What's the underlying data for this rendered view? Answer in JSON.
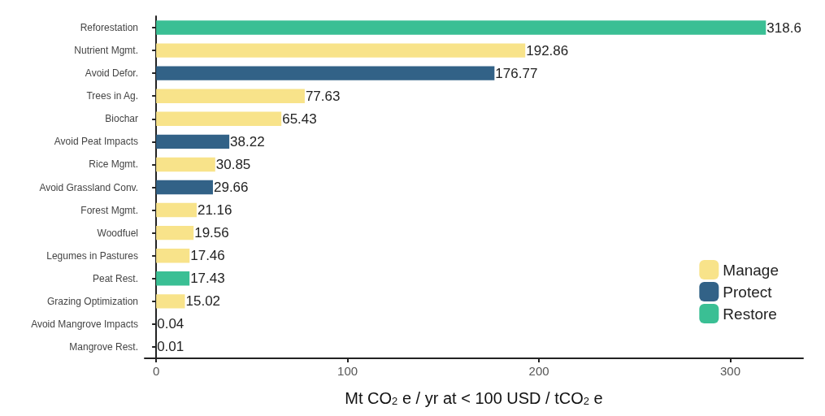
{
  "chart_data": {
    "type": "bar",
    "orientation": "horizontal",
    "stacked": true,
    "xlabel": "Mt CO$_{2}$ e / yr at < 100 USD / tCO$_{2}$ e",
    "categories": [
      "Reforestation",
      "Nutrient Mgmt.",
      "Avoid Defor.",
      "Trees in Ag.",
      "Biochar",
      "Avoid Peat Impacts",
      "Rice Mgmt.",
      "Avoid Grassland Conv.",
      "Forest Mgmt.",
      "Woodfuel",
      "Legumes in Pastures",
      "Peat Rest.",
      "Grazing Optimization",
      "Avoid Mangrove Impacts",
      "Mangrove Rest."
    ],
    "series": [
      {
        "name": "Manage",
        "color": "#f8e38a",
        "values": [
          null,
          192.86,
          null,
          77.63,
          65.43,
          null,
          30.85,
          null,
          21.16,
          19.56,
          17.46,
          null,
          15.02,
          null,
          null
        ]
      },
      {
        "name": "Protect",
        "color": "#326287",
        "values": [
          null,
          null,
          176.77,
          null,
          null,
          38.22,
          null,
          29.66,
          null,
          null,
          null,
          null,
          null,
          0.04,
          null
        ]
      },
      {
        "name": "Restore",
        "color": "#3abf94",
        "values": [
          318.6,
          null,
          null,
          null,
          null,
          null,
          null,
          null,
          null,
          null,
          null,
          17.43,
          null,
          null,
          0.01
        ]
      }
    ],
    "xlim": [
      -6,
      338
    ],
    "xticks": [
      0,
      100,
      200,
      300
    ],
    "data_labels": true,
    "grid": false,
    "legend": "bottom right"
  }
}
